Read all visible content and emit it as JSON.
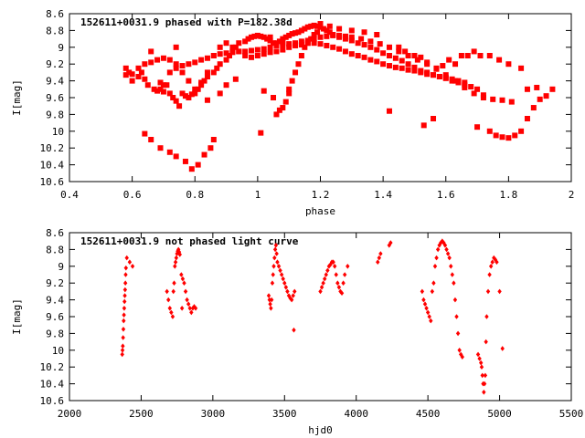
{
  "chart_data": [
    {
      "type": "scatter",
      "title": "152611+0031.9 phased with P=182.38d",
      "xlabel": "phase",
      "ylabel": "I[mag]",
      "xlim": [
        0.4,
        2.0
      ],
      "ylim": [
        10.6,
        8.6
      ],
      "y_inverted": true,
      "xticks": [
        "0.4",
        "0.6",
        "0.8",
        "1",
        "1.2",
        "1.4",
        "1.6",
        "1.8",
        "2"
      ],
      "xtick_values": [
        0.4,
        0.6,
        0.8,
        1.0,
        1.2,
        1.4,
        1.6,
        1.8,
        2.0
      ],
      "yticks": [
        "8.6",
        "8.8",
        "9",
        "9.2",
        "9.4",
        "9.6",
        "9.8",
        "10",
        "10.2",
        "10.4",
        "10.6"
      ],
      "ytick_values": [
        8.6,
        8.8,
        9.0,
        9.2,
        9.4,
        9.6,
        9.8,
        10.0,
        10.2,
        10.4,
        10.6
      ],
      "grid": false,
      "marker": "filled-square",
      "series_color": "#ff0000",
      "x": [
        0.58,
        0.58,
        0.59,
        0.6,
        0.62,
        0.63,
        0.64,
        0.65,
        0.67,
        0.68,
        0.69,
        0.7,
        0.72,
        0.73,
        0.74,
        0.75,
        0.76,
        0.77,
        0.78,
        0.79,
        0.8,
        0.81,
        0.82,
        0.83,
        0.84,
        0.86,
        0.87,
        0.88,
        0.9,
        0.91,
        0.92,
        0.93,
        0.94,
        0.96,
        0.97,
        0.98,
        0.99,
        1.0,
        1.01,
        1.02,
        1.03,
        1.04,
        1.05,
        1.06,
        1.07,
        1.08,
        1.09,
        1.1,
        1.11,
        1.12,
        1.13,
        1.14,
        1.15,
        1.16,
        1.17,
        1.18,
        1.19,
        1.2,
        1.21,
        1.22,
        1.23,
        1.24,
        1.26,
        1.28,
        1.3,
        1.32,
        1.34,
        1.36,
        1.38,
        1.4,
        1.42,
        1.44,
        1.46,
        1.48,
        1.5,
        1.52,
        1.54,
        1.56,
        1.58,
        1.6,
        1.62,
        1.64,
        1.66,
        1.68,
        1.7,
        0.72,
        0.74,
        0.76,
        0.78,
        0.8,
        0.82,
        0.84,
        0.86,
        0.88,
        0.9,
        0.92,
        0.94,
        0.96,
        0.98,
        1.0,
        1.02,
        1.04,
        1.06,
        1.08,
        1.1,
        1.12,
        1.14,
        1.16,
        1.18,
        1.2,
        1.22,
        1.24,
        1.26,
        1.28,
        1.3,
        1.33,
        1.36,
        1.39,
        1.42,
        1.45,
        1.48,
        1.51,
        1.54,
        1.57,
        1.6,
        1.63,
        1.66,
        1.69,
        1.72,
        1.75,
        1.78,
        1.81,
        0.64,
        0.66,
        0.68,
        0.7,
        0.72,
        0.74,
        0.76,
        0.78,
        0.8,
        0.82,
        0.84,
        0.86,
        0.88,
        0.9,
        0.92,
        0.94,
        0.96,
        0.98,
        1.0,
        1.02,
        1.04,
        1.06,
        1.08,
        1.1,
        1.12,
        1.14,
        1.16,
        1.18,
        1.2,
        1.22,
        1.24,
        1.26,
        1.28,
        1.3,
        1.32,
        1.34,
        1.36,
        1.38,
        1.4,
        1.42,
        1.44,
        1.46,
        1.48,
        1.5,
        1.52,
        1.54,
        1.56,
        1.58,
        1.6,
        1.62,
        1.64,
        1.66,
        0.64,
        0.66,
        0.69,
        0.72,
        0.74,
        0.77,
        0.79,
        0.81,
        0.83,
        0.85,
        0.86,
        1.01,
        1.06,
        1.07,
        1.08,
        1.09,
        1.1,
        1.11,
        1.12,
        1.13,
        1.14,
        1.15,
        1.16,
        1.17,
        1.18,
        1.19,
        1.42,
        1.53,
        1.56,
        1.72,
        1.7,
        1.74,
        1.76,
        1.78,
        1.8,
        1.82,
        1.84,
        1.86,
        1.88,
        1.9,
        1.92,
        1.94
      ],
      "y": [
        9.25,
        9.33,
        9.3,
        9.4,
        9.35,
        9.3,
        9.38,
        9.45,
        9.5,
        9.52,
        9.5,
        9.53,
        9.55,
        9.6,
        9.64,
        9.7,
        9.55,
        9.58,
        9.6,
        9.56,
        9.55,
        9.5,
        9.45,
        9.4,
        9.35,
        9.3,
        9.25,
        9.2,
        9.15,
        9.1,
        9.05,
        9.0,
        8.95,
        8.93,
        8.9,
        8.88,
        8.87,
        8.86,
        8.87,
        8.88,
        8.9,
        8.92,
        8.95,
        8.95,
        8.93,
        8.9,
        8.88,
        8.86,
        8.84,
        8.83,
        8.82,
        8.8,
        8.78,
        8.76,
        8.75,
        8.74,
        8.75,
        8.76,
        8.78,
        8.8,
        8.82,
        8.85,
        8.88,
        8.9,
        8.92,
        8.95,
        8.97,
        9.0,
        9.03,
        9.07,
        9.1,
        9.13,
        9.16,
        9.2,
        9.24,
        9.28,
        9.3,
        9.33,
        9.35,
        9.37,
        9.4,
        9.42,
        9.45,
        9.47,
        9.5,
        9.3,
        9.25,
        9.22,
        9.2,
        9.18,
        9.15,
        9.13,
        9.1,
        9.08,
        9.07,
        9.06,
        9.05,
        9.05,
        9.04,
        9.03,
        9.02,
        9.0,
        8.98,
        8.97,
        8.96,
        8.95,
        8.93,
        8.92,
        8.9,
        8.88,
        8.87,
        8.86,
        8.86,
        8.87,
        8.88,
        8.9,
        8.93,
        8.96,
        9.0,
        9.05,
        9.1,
        9.15,
        9.2,
        9.26,
        9.33,
        9.4,
        9.48,
        9.55,
        9.6,
        9.62,
        9.63,
        9.65,
        9.2,
        9.18,
        9.15,
        9.13,
        9.15,
        9.2,
        9.3,
        9.4,
        9.5,
        9.42,
        9.3,
        9.1,
        9.0,
        8.95,
        9.0,
        9.05,
        9.1,
        9.12,
        9.1,
        9.08,
        9.06,
        9.05,
        9.03,
        9.0,
        8.98,
        8.97,
        8.95,
        8.95,
        8.96,
        8.98,
        9.0,
        9.02,
        9.05,
        9.08,
        9.1,
        9.12,
        9.15,
        9.17,
        9.2,
        9.22,
        9.24,
        9.25,
        9.27,
        9.28,
        9.3,
        9.32,
        9.33,
        9.35,
        9.36,
        9.38,
        9.4,
        9.42,
        10.03,
        10.1,
        10.2,
        10.25,
        10.3,
        10.36,
        10.45,
        10.4,
        10.28,
        10.2,
        10.1,
        10.02,
        9.8,
        9.75,
        9.72,
        9.65,
        9.55,
        9.4,
        9.3,
        9.2,
        9.1,
        9.0,
        8.95,
        8.9,
        8.85,
        8.82,
        9.76,
        9.93,
        9.85,
        9.57,
        9.95,
        10.0,
        10.05,
        10.07,
        10.08,
        10.05,
        10.0,
        9.85,
        9.72,
        9.62,
        9.58,
        9.5
      ],
      "extra_points": {
        "x": [
          0.66,
          0.74,
          0.9,
          0.93,
          1.04,
          1.08,
          1.2,
          1.23,
          1.26,
          1.3,
          1.34,
          1.38,
          1.45,
          1.47,
          1.5,
          1.52,
          1.54,
          1.57,
          1.59,
          1.61,
          1.63,
          1.65,
          1.67,
          1.69,
          1.71,
          1.74,
          1.77,
          1.8,
          1.84,
          1.86,
          1.89,
          0.62,
          0.7,
          0.6,
          0.69,
          0.71,
          0.84,
          0.88,
          1.02,
          1.05,
          1.1
        ],
        "y": [
          9.05,
          9.0,
          9.45,
          9.38,
          8.88,
          8.95,
          8.72,
          8.75,
          8.78,
          8.8,
          8.82,
          8.85,
          9.0,
          9.05,
          9.1,
          9.12,
          9.18,
          9.25,
          9.22,
          9.15,
          9.2,
          9.1,
          9.1,
          9.05,
          9.1,
          9.1,
          9.15,
          9.2,
          9.25,
          9.5,
          9.48,
          9.25,
          9.45,
          9.32,
          9.42,
          9.45,
          9.63,
          9.55,
          9.52,
          9.6,
          9.5
        ]
      }
    },
    {
      "type": "scatter",
      "title": "152611+0031.9 not phased light curve",
      "xlabel": "hjd0",
      "ylabel": "I[mag]",
      "xlim": [
        2000,
        5500
      ],
      "ylim": [
        10.6,
        8.6
      ],
      "y_inverted": true,
      "xticks": [
        "2000",
        "2500",
        "3000",
        "3500",
        "4000",
        "4500",
        "5000",
        "5500"
      ],
      "xtick_values": [
        2000,
        2500,
        3000,
        3500,
        4000,
        4500,
        5000,
        5500
      ],
      "yticks": [
        "8.6",
        "8.8",
        "9",
        "9.2",
        "9.4",
        "9.6",
        "9.8",
        "10",
        "10.2",
        "10.4",
        "10.6"
      ],
      "ytick_values": [
        8.6,
        8.8,
        9.0,
        9.2,
        9.4,
        9.6,
        9.8,
        10.0,
        10.2,
        10.4,
        10.6
      ],
      "grid": false,
      "marker": "filled-diamond",
      "series_color": "#ff0000",
      "x": [
        2368,
        2370,
        2372,
        2374,
        2376,
        2378,
        2380,
        2382,
        2384,
        2386,
        2388,
        2390,
        2392,
        2394,
        2400,
        2420,
        2440,
        2680,
        2690,
        2700,
        2710,
        2720,
        2725,
        2730,
        2735,
        2740,
        2745,
        2750,
        2755,
        2760,
        2765,
        2770,
        2780,
        2790,
        2800,
        2810,
        2820,
        2830,
        2840,
        2850,
        2860,
        2870,
        2880,
        3390,
        3395,
        3400,
        3405,
        3410,
        3415,
        3420,
        3425,
        3430,
        3435,
        3440,
        3445,
        3450,
        3460,
        3470,
        3480,
        3490,
        3500,
        3510,
        3520,
        3530,
        3540,
        3550,
        3560,
        3570,
        3750,
        3760,
        3770,
        3780,
        3790,
        3800,
        3810,
        3820,
        3830,
        3840,
        3850,
        3860,
        3870,
        3880,
        3890,
        3900,
        3910,
        3920,
        3940,
        4150,
        4160,
        4170,
        4230,
        4240,
        4460,
        4470,
        4480,
        4490,
        4500,
        4510,
        4520,
        4530,
        4540,
        4550,
        4560,
        4570,
        4580,
        4590,
        4600,
        4610,
        4620,
        4630,
        4640,
        4650,
        4660,
        4670,
        4680,
        4690,
        4700,
        4710,
        4720,
        4730,
        4740,
        4850,
        4860,
        4870,
        4875,
        4880,
        4885,
        4890,
        4895,
        4900,
        4905,
        4910,
        4920,
        4930,
        4940,
        4950,
        4960,
        4970,
        4980,
        5000,
        5020,
        3565,
        2785
      ],
      "y": [
        10.05,
        10.0,
        9.95,
        9.85,
        9.75,
        9.65,
        9.58,
        9.5,
        9.42,
        9.35,
        9.28,
        9.2,
        9.1,
        9.02,
        8.9,
        8.95,
        9.0,
        9.3,
        9.4,
        9.5,
        9.55,
        9.6,
        9.3,
        9.2,
        9.0,
        8.95,
        8.9,
        8.85,
        8.82,
        8.8,
        8.83,
        8.86,
        9.1,
        9.15,
        9.2,
        9.3,
        9.4,
        9.45,
        9.5,
        9.55,
        9.5,
        9.48,
        9.5,
        9.35,
        9.4,
        9.45,
        9.5,
        9.4,
        9.2,
        9.1,
        9.0,
        8.9,
        8.8,
        8.75,
        8.85,
        8.95,
        9.0,
        9.05,
        9.1,
        9.15,
        9.2,
        9.25,
        9.3,
        9.35,
        9.38,
        9.4,
        9.35,
        9.3,
        9.3,
        9.25,
        9.2,
        9.15,
        9.1,
        9.05,
        9.0,
        8.98,
        8.95,
        8.95,
        9.0,
        9.1,
        9.2,
        9.25,
        9.3,
        9.32,
        9.2,
        9.1,
        9.0,
        8.95,
        8.9,
        8.85,
        8.75,
        8.72,
        9.3,
        9.4,
        9.45,
        9.5,
        9.55,
        9.6,
        9.65,
        9.3,
        9.2,
        9.0,
        8.9,
        8.8,
        8.75,
        8.72,
        8.7,
        8.72,
        8.75,
        8.8,
        8.85,
        8.9,
        9.0,
        9.1,
        9.2,
        9.4,
        9.6,
        9.8,
        10.0,
        10.05,
        10.08,
        10.05,
        10.1,
        10.15,
        10.2,
        10.3,
        10.4,
        10.5,
        10.4,
        10.3,
        9.9,
        9.6,
        9.3,
        9.1,
        9.0,
        8.95,
        8.9,
        8.92,
        8.95,
        9.3,
        9.98,
        9.76,
        9.5
      ]
    }
  ]
}
